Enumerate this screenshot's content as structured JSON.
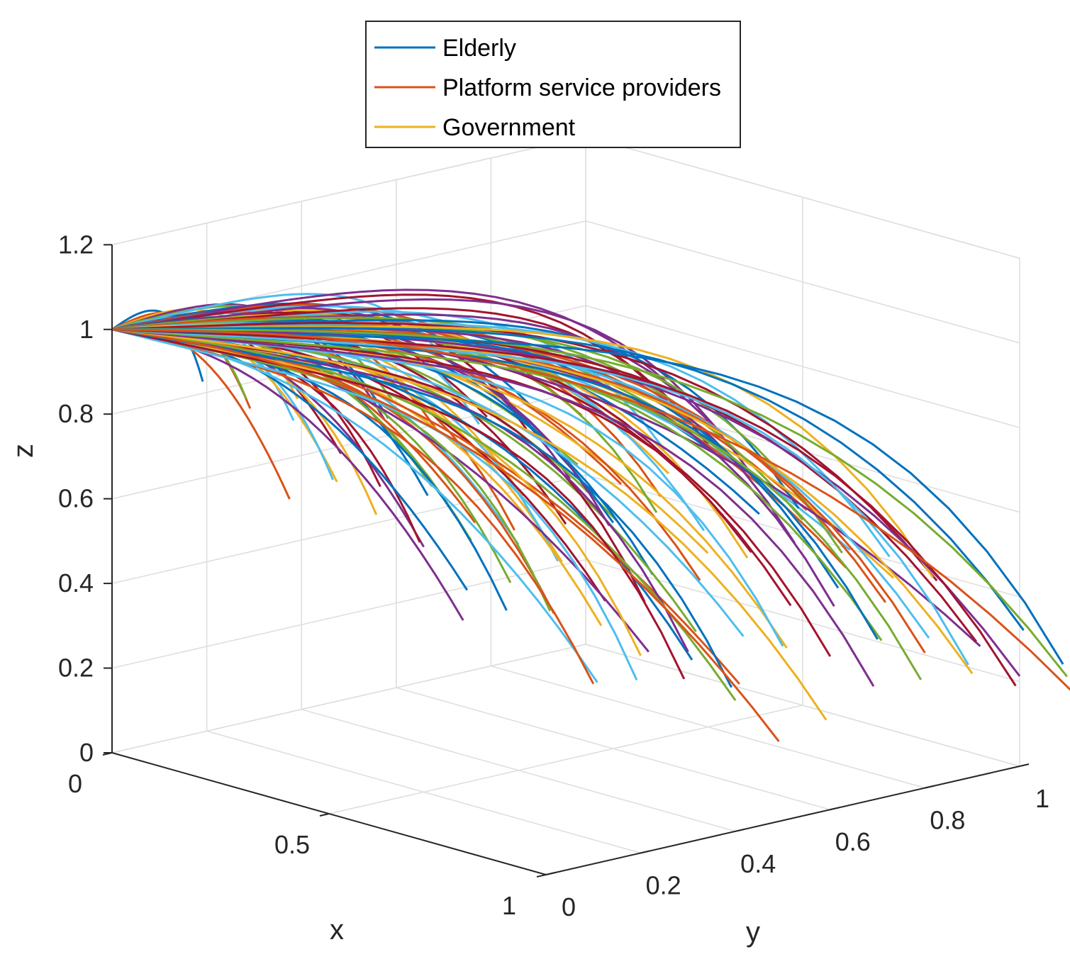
{
  "chart_data": {
    "type": "line3d",
    "title": "",
    "xlabel": "x",
    "ylabel": "y",
    "zlabel": "z",
    "xlim": [
      0,
      1
    ],
    "ylim": [
      0,
      1
    ],
    "zlim": [
      0,
      1.2
    ],
    "x_ticks": [
      0,
      0.5,
      1
    ],
    "x_tick_labels": [
      "0",
      "0.5",
      "1"
    ],
    "y_ticks": [
      0,
      0.2,
      0.4,
      0.6,
      0.8,
      1
    ],
    "y_tick_labels": [
      "0",
      "0.2",
      "0.4",
      "0.6",
      "0.8",
      "1"
    ],
    "z_ticks": [
      0,
      0.2,
      0.4,
      0.6,
      0.8,
      1,
      1.2
    ],
    "z_tick_labels": [
      "0",
      "0.2",
      "0.4",
      "0.6",
      "0.8",
      "1",
      "1.2"
    ],
    "grid": true,
    "legend_position": "top-center",
    "legend": [
      {
        "label": "Elderly",
        "color": "#0072BD"
      },
      {
        "label": "Platform service providers",
        "color": "#D95319"
      },
      {
        "label": "Government",
        "color": "#EDB120"
      }
    ],
    "trajectory_start": [
      0,
      0,
      1
    ],
    "trajectory_count": 121,
    "trajectory_grid_x": [
      0.1,
      0.2,
      0.3,
      0.4,
      0.5,
      0.6,
      0.7,
      0.8,
      0.9,
      1.0,
      1.1
    ],
    "trajectory_grid_y": [
      0.1,
      0.2,
      0.3,
      0.4,
      0.5,
      0.6,
      0.7,
      0.8,
      0.9,
      1.0,
      1.1
    ],
    "color_cycle": [
      "#0072BD",
      "#D95319",
      "#EDB120",
      "#7E2F8E",
      "#77AC30",
      "#4DBEEE",
      "#A2142F"
    ]
  }
}
